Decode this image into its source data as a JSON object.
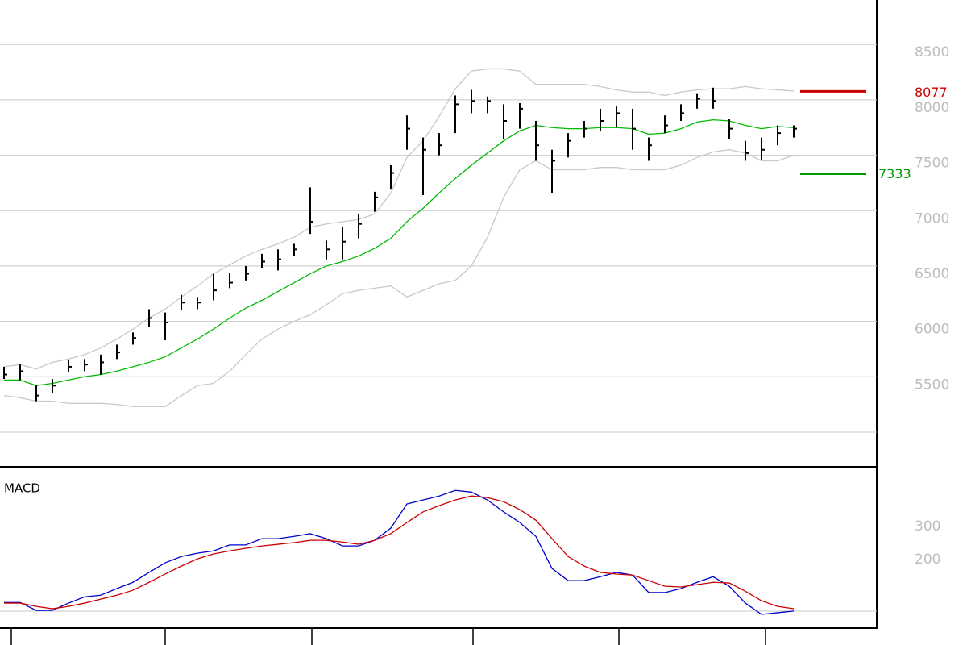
{
  "chart_data": [
    {
      "type": "ohlc",
      "ylim": [
        4694,
        8902
      ],
      "yticks": [
        {
          "value": 5000,
          "label": null
        },
        5500,
        6000,
        6500,
        7000,
        7500,
        8000,
        8500
      ],
      "grid": true,
      "bars": {
        "color": "#000000",
        "high": [
          5590,
          5610,
          5420,
          5480,
          5650,
          5660,
          5700,
          5790,
          5900,
          6110,
          6080,
          6240,
          6220,
          6430,
          6440,
          6500,
          6610,
          6650,
          6700,
          7210,
          6730,
          6850,
          6970,
          7170,
          7410,
          7860,
          7660,
          7700,
          8040,
          8090,
          8030,
          7960,
          7970,
          7810,
          7550,
          7700,
          7810,
          7920,
          7940,
          7920,
          7660,
          7860,
          7960,
          8060,
          8110,
          7830,
          7630,
          7660,
          7770,
          7770
        ],
        "low": [
          5480,
          5470,
          5280,
          5350,
          5540,
          5550,
          5520,
          5660,
          5790,
          5950,
          5830,
          6100,
          6110,
          6190,
          6300,
          6370,
          6480,
          6460,
          6590,
          6790,
          6560,
          6560,
          6750,
          6990,
          7190,
          7550,
          7140,
          7500,
          7700,
          7880,
          7880,
          7650,
          7740,
          7450,
          7160,
          7480,
          7660,
          7720,
          7750,
          7550,
          7450,
          7700,
          7810,
          7920,
          7920,
          7650,
          7450,
          7460,
          7590,
          7660
        ],
        "close": [
          5520,
          5550,
          5330,
          5420,
          5590,
          5610,
          5630,
          5720,
          5850,
          6030,
          5990,
          6170,
          6170,
          6280,
          6350,
          6430,
          6540,
          6560,
          6650,
          6900,
          6650,
          6720,
          6880,
          7120,
          7340,
          7740,
          7550,
          7590,
          7960,
          7990,
          7990,
          7810,
          7920,
          7590,
          7450,
          7630,
          7740,
          7810,
          7880,
          7740,
          7590,
          7770,
          7880,
          8010,
          7990,
          7740,
          7520,
          7550,
          7700,
          7740
        ]
      },
      "series": [
        {
          "color": "#00bb00",
          "values": [
            5470,
            5470,
            5420,
            5440,
            5470,
            5500,
            5520,
            5550,
            5590,
            5630,
            5680,
            5760,
            5840,
            5930,
            6030,
            6120,
            6190,
            6270,
            6350,
            6430,
            6500,
            6540,
            6590,
            6660,
            6750,
            6900,
            7020,
            7160,
            7290,
            7410,
            7520,
            7630,
            7720,
            7770,
            7750,
            7740,
            7740,
            7750,
            7750,
            7740,
            7690,
            7700,
            7740,
            7800,
            7820,
            7810,
            7770,
            7740,
            7760,
            7750
          ]
        },
        {
          "color": "#c8c8c8",
          "values": [
            5590,
            5610,
            5570,
            5630,
            5660,
            5700,
            5760,
            5840,
            5930,
            6030,
            6110,
            6220,
            6320,
            6430,
            6510,
            6590,
            6650,
            6700,
            6760,
            6850,
            6880,
            6900,
            6920,
            6970,
            7160,
            7480,
            7630,
            7850,
            8100,
            8260,
            8280,
            8280,
            8260,
            8140,
            8140,
            8140,
            8140,
            8120,
            8090,
            8070,
            8070,
            8040,
            8070,
            8090,
            8100,
            8100,
            8120,
            8100,
            8090,
            8080
          ]
        },
        {
          "color": "#c8c8c8",
          "values": [
            5330,
            5310,
            5280,
            5280,
            5260,
            5260,
            5260,
            5250,
            5230,
            5230,
            5230,
            5330,
            5420,
            5440,
            5550,
            5700,
            5840,
            5930,
            6000,
            6060,
            6150,
            6250,
            6280,
            6300,
            6320,
            6220,
            6280,
            6340,
            6370,
            6500,
            6760,
            7120,
            7370,
            7450,
            7370,
            7370,
            7370,
            7390,
            7390,
            7370,
            7370,
            7370,
            7410,
            7480,
            7530,
            7550,
            7520,
            7450,
            7450,
            7500
          ]
        }
      ],
      "levels": [
        {
          "value": 8077,
          "color": "#cc0000"
        },
        {
          "value": 7333,
          "color": "#009900"
        }
      ]
    },
    {
      "type": "line",
      "title": "MACD",
      "ylim": [
        -29,
        449
      ],
      "yticks": [
        200,
        300
      ],
      "grid": false,
      "series": [
        {
          "color": "#0000cc",
          "values": [
            46,
            46,
            22,
            22,
            44,
            63,
            68,
            88,
            107,
            137,
            166,
            185,
            195,
            202,
            220,
            220,
            239,
            239,
            246,
            254,
            239,
            217,
            217,
            234,
            271,
            344,
            356,
            368,
            385,
            380,
            356,
            320,
            288,
            246,
            149,
            112,
            112,
            124,
            137,
            129,
            76,
            76,
            88,
            107,
            124,
            95,
            44,
            10,
            15,
            20
          ]
        },
        {
          "color": "#cc0000",
          "values": [
            44,
            44,
            34,
            27,
            34,
            44,
            56,
            68,
            83,
            107,
            132,
            156,
            178,
            193,
            202,
            210,
            217,
            222,
            227,
            234,
            234,
            229,
            222,
            234,
            254,
            288,
            320,
            339,
            356,
            368,
            363,
            351,
            327,
            295,
            239,
            185,
            156,
            137,
            132,
            129,
            112,
            95,
            93,
            100,
            107,
            105,
            80,
            51,
            34,
            27
          ]
        }
      ]
    }
  ]
}
